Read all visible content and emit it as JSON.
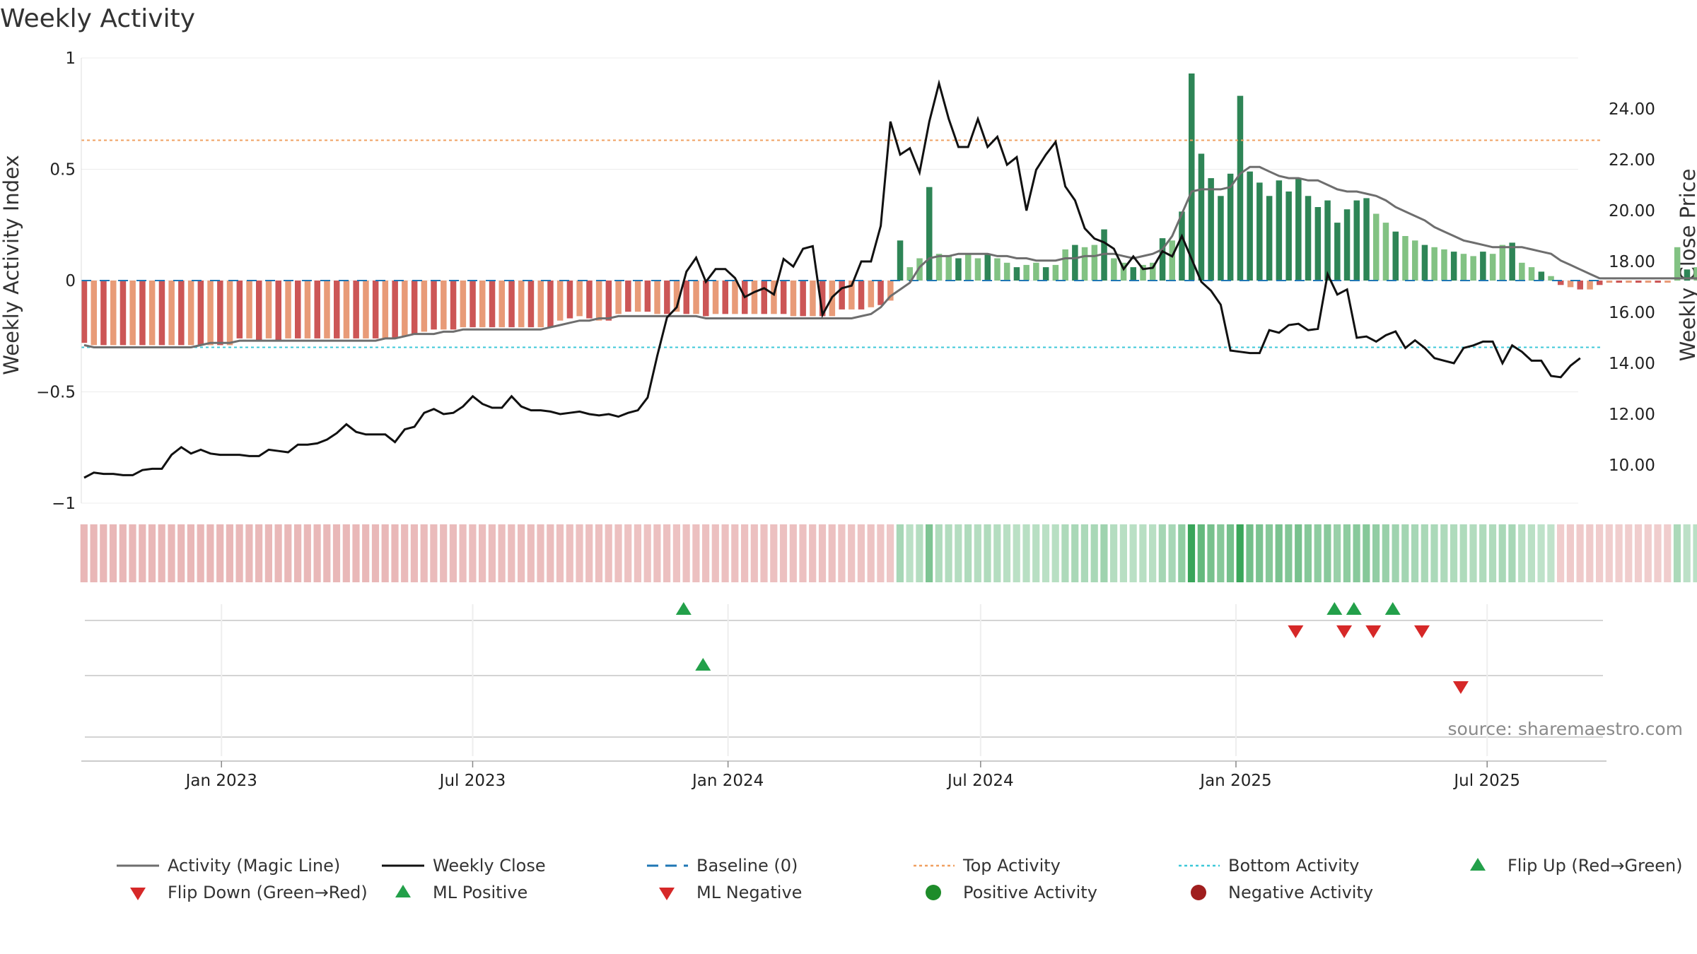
{
  "chart_data": {
    "type": "bar",
    "title": "Weekly Activity",
    "ylabel_left": "Weekly Activity Index",
    "ylabel_right": "Weekly Close Price",
    "ylim_left": [
      -1,
      1
    ],
    "ylim_right": [
      8.5,
      26.0
    ],
    "yticks_left": [
      1,
      0.5,
      0,
      -0.5,
      -1
    ],
    "ytick_labels_left": [
      "1",
      "0.5",
      "0",
      "−0.5",
      "−1"
    ],
    "yticks_right": [
      24,
      22,
      20,
      18,
      16,
      14,
      12,
      10
    ],
    "ytick_labels_right": [
      "24.00",
      "22.00",
      "20.00",
      "18.00",
      "16.00",
      "14.00",
      "12.00",
      "10.00"
    ],
    "x_range": [
      "2022-09-22",
      "2025-09-25"
    ],
    "xticks": [
      "2023-01-01",
      "2023-07-01",
      "2024-01-01",
      "2024-07-01",
      "2025-01-01",
      "2025-07-01"
    ],
    "xtick_labels": [
      "Jan 2023",
      "Jul 2023",
      "Jan 2024",
      "Jul 2024",
      "Jan 2025",
      "Jul 2025"
    ],
    "top_activity": 0.63,
    "bottom_activity": -0.3,
    "baseline": 0,
    "weeks_start": "2022-09-22",
    "week_step_days": 7,
    "activity_values": [
      -0.28,
      -0.29,
      -0.29,
      -0.29,
      -0.29,
      -0.29,
      -0.29,
      -0.29,
      -0.29,
      -0.29,
      -0.29,
      -0.29,
      -0.29,
      -0.29,
      -0.29,
      -0.29,
      -0.26,
      -0.26,
      -0.27,
      -0.26,
      -0.27,
      -0.26,
      -0.26,
      -0.26,
      -0.26,
      -0.26,
      -0.26,
      -0.26,
      -0.26,
      -0.26,
      -0.26,
      -0.26,
      -0.26,
      -0.25,
      -0.24,
      -0.23,
      -0.22,
      -0.22,
      -0.22,
      -0.21,
      -0.21,
      -0.21,
      -0.21,
      -0.21,
      -0.21,
      -0.21,
      -0.21,
      -0.21,
      -0.21,
      -0.18,
      -0.17,
      -0.16,
      -0.17,
      -0.18,
      -0.18,
      -0.15,
      -0.14,
      -0.14,
      -0.14,
      -0.15,
      -0.15,
      -0.14,
      -0.15,
      -0.15,
      -0.16,
      -0.15,
      -0.15,
      -0.15,
      -0.15,
      -0.15,
      -0.15,
      -0.15,
      -0.15,
      -0.16,
      -0.16,
      -0.16,
      -0.16,
      -0.16,
      -0.13,
      -0.13,
      -0.13,
      -0.12,
      -0.11,
      -0.09,
      0.18,
      0.06,
      0.1,
      0.42,
      0.12,
      0.11,
      0.1,
      0.12,
      0.1,
      0.12,
      0.1,
      0.08,
      0.06,
      0.07,
      0.08,
      0.06,
      0.07,
      0.14,
      0.16,
      0.15,
      0.16,
      0.23,
      0.1,
      0.08,
      0.06,
      0.07,
      0.08,
      0.19,
      0.18,
      0.31,
      0.93,
      0.57,
      0.46,
      0.38,
      0.48,
      0.83,
      0.49,
      0.44,
      0.38,
      0.45,
      0.4,
      0.46,
      0.38,
      0.33,
      0.36,
      0.26,
      0.32,
      0.36,
      0.37,
      0.3,
      0.26,
      0.22,
      0.2,
      0.18,
      0.16,
      0.15,
      0.14,
      0.13,
      0.12,
      0.11,
      0.13,
      0.12,
      0.16,
      0.17,
      0.08,
      0.06,
      0.04,
      0.02,
      -0.02,
      -0.03,
      -0.04,
      -0.04,
      -0.02,
      -0.01,
      -0.01,
      -0.01,
      -0.01,
      -0.01,
      -0.01,
      -0.01,
      0.15,
      0.05,
      0.06,
      -0.01,
      -0.02,
      -0.02,
      -0.02,
      -0.02,
      -0.03,
      -0.04,
      -0.05,
      -0.04,
      -0.06,
      -0.06,
      -0.06,
      -0.05,
      -0.05,
      -0.04,
      -0.04,
      -0.04,
      -0.07,
      -0.05,
      -0.05,
      -0.07,
      -0.07,
      -0.08,
      -0.1,
      -0.09,
      -0.07
    ],
    "magic_line": [
      -0.29,
      -0.3,
      -0.3,
      -0.3,
      -0.3,
      -0.3,
      -0.3,
      -0.3,
      -0.3,
      -0.3,
      -0.3,
      -0.3,
      -0.29,
      -0.28,
      -0.28,
      -0.28,
      -0.27,
      -0.27,
      -0.27,
      -0.27,
      -0.27,
      -0.27,
      -0.27,
      -0.27,
      -0.27,
      -0.27,
      -0.27,
      -0.27,
      -0.27,
      -0.27,
      -0.27,
      -0.26,
      -0.26,
      -0.25,
      -0.24,
      -0.24,
      -0.24,
      -0.23,
      -0.23,
      -0.22,
      -0.22,
      -0.22,
      -0.22,
      -0.22,
      -0.22,
      -0.22,
      -0.22,
      -0.22,
      -0.21,
      -0.2,
      -0.19,
      -0.18,
      -0.18,
      -0.17,
      -0.17,
      -0.16,
      -0.16,
      -0.16,
      -0.16,
      -0.16,
      -0.16,
      -0.16,
      -0.16,
      -0.16,
      -0.17,
      -0.17,
      -0.17,
      -0.17,
      -0.17,
      -0.17,
      -0.17,
      -0.17,
      -0.17,
      -0.17,
      -0.17,
      -0.17,
      -0.17,
      -0.17,
      -0.17,
      -0.17,
      -0.16,
      -0.15,
      -0.12,
      -0.07,
      -0.04,
      -0.01,
      0.06,
      0.1,
      0.11,
      0.11,
      0.12,
      0.12,
      0.12,
      0.12,
      0.11,
      0.11,
      0.1,
      0.1,
      0.09,
      0.09,
      0.09,
      0.1,
      0.1,
      0.11,
      0.11,
      0.12,
      0.12,
      0.11,
      0.1,
      0.11,
      0.12,
      0.14,
      0.2,
      0.3,
      0.4,
      0.41,
      0.41,
      0.41,
      0.42,
      0.48,
      0.51,
      0.51,
      0.49,
      0.47,
      0.46,
      0.46,
      0.45,
      0.45,
      0.43,
      0.41,
      0.4,
      0.4,
      0.39,
      0.38,
      0.36,
      0.33,
      0.31,
      0.29,
      0.27,
      0.24,
      0.22,
      0.2,
      0.18,
      0.17,
      0.16,
      0.15,
      0.15,
      0.15,
      0.15,
      0.14,
      0.13,
      0.12,
      0.09,
      0.07,
      0.05,
      0.03,
      0.01,
      0.01,
      0.01,
      0.01,
      0.01,
      0.01,
      0.01,
      0.01,
      0.01,
      0.01,
      0.01,
      0.01,
      0.02,
      0.03,
      0.04,
      0.04,
      0.03,
      0.02,
      0.01,
      0.0,
      0.0,
      -0.01,
      -0.02,
      -0.03,
      -0.04,
      -0.05,
      -0.05,
      -0.05,
      -0.05,
      -0.05,
      -0.05,
      -0.05,
      -0.05,
      -0.05,
      -0.05,
      -0.05,
      -0.06,
      -0.07,
      -0.07,
      -0.08,
      -0.08,
      -0.08,
      -0.08,
      -0.08
    ],
    "weekly_close": [
      9.5,
      9.7,
      9.65,
      9.65,
      9.6,
      9.6,
      9.8,
      9.85,
      9.85,
      10.4,
      10.7,
      10.45,
      10.6,
      10.45,
      10.4,
      10.4,
      10.4,
      10.35,
      10.35,
      10.6,
      10.55,
      10.5,
      10.8,
      10.8,
      10.85,
      11.0,
      11.25,
      11.6,
      11.3,
      11.2,
      11.2,
      11.2,
      10.9,
      11.4,
      11.5,
      12.05,
      12.2,
      12.0,
      12.05,
      12.3,
      12.7,
      12.4,
      12.25,
      12.25,
      12.7,
      12.3,
      12.15,
      12.15,
      12.1,
      12.0,
      12.05,
      12.1,
      12.0,
      11.95,
      12.0,
      11.9,
      12.05,
      12.15,
      12.65,
      14.3,
      15.8,
      16.2,
      17.6,
      18.15,
      17.2,
      17.7,
      17.7,
      17.35,
      16.6,
      16.8,
      16.95,
      16.7,
      18.1,
      17.8,
      18.5,
      18.6,
      15.9,
      16.6,
      16.95,
      17.05,
      18.0,
      18.0,
      19.4,
      23.5,
      22.2,
      22.45,
      21.5,
      23.5,
      25.0,
      23.6,
      22.5,
      22.5,
      23.6,
      22.5,
      22.9,
      21.8,
      22.1,
      20.0,
      21.6,
      22.2,
      22.7,
      20.95,
      20.4,
      19.3,
      18.9,
      18.75,
      18.5,
      17.7,
      18.2,
      17.7,
      17.75,
      18.4,
      18.2,
      19.0,
      18.1,
      17.2,
      16.85,
      16.3,
      14.5,
      14.45,
      14.4,
      14.4,
      15.3,
      15.2,
      15.5,
      15.55,
      15.3,
      15.35,
      17.5,
      16.7,
      16.9,
      15.0,
      15.05,
      14.85,
      15.1,
      15.25,
      14.6,
      14.9,
      14.6,
      14.2,
      14.1,
      14.0,
      14.6,
      14.7,
      14.85,
      14.85,
      14.0,
      14.7,
      14.45,
      14.1,
      14.1,
      13.5,
      13.45,
      13.9,
      14.2
    ],
    "flip_up_dates": [
      "2023-11-30",
      "2025-03-13",
      "2025-03-27",
      "2025-04-24"
    ],
    "flip_down_dates": [
      "2025-02-13",
      "2025-03-20",
      "2025-04-10",
      "2025-05-15"
    ],
    "ml_positive_dates": [
      "2023-12-14"
    ],
    "ml_negative_dates": [
      "2025-06-12"
    ],
    "source_note": "source: sharemaestro.com",
    "legend": [
      {
        "label": "Activity (Magic Line)",
        "symbol": "line",
        "color": "#6e6e6e"
      },
      {
        "label": "Weekly Close",
        "symbol": "line",
        "color": "#111111"
      },
      {
        "label": "Baseline (0)",
        "symbol": "dash",
        "color": "#1f77b4"
      },
      {
        "label": "Top Activity",
        "symbol": "dot",
        "color": "#f0a060"
      },
      {
        "label": "Bottom Activity",
        "symbol": "dot",
        "color": "#3cc8d8"
      },
      {
        "label": "Flip Up (Red→Green)",
        "symbol": "tri-up",
        "color": "#23a04a"
      },
      {
        "label": "Flip Down (Green→Red)",
        "symbol": "tri-down",
        "color": "#d62828"
      },
      {
        "label": "ML Positive",
        "symbol": "tri-up",
        "color": "#23a04a"
      },
      {
        "label": "ML Negative",
        "symbol": "tri-down",
        "color": "#d62828"
      },
      {
        "label": "Positive Activity",
        "symbol": "circle",
        "color": "#1e8c2a"
      },
      {
        "label": "Negative Activity",
        "symbol": "circle",
        "color": "#a01e1e"
      }
    ],
    "colors": {
      "pos_strong": "#2e8556",
      "pos_light": "#82c283",
      "neg_strong": "#cc5656",
      "neg_light": "#e89b78",
      "magic_line": "#6e6e6e",
      "close_line": "#111111",
      "baseline": "#1f77b4",
      "top": "#f0a060",
      "bottom": "#3cc8d8",
      "flip_up": "#23a04a",
      "flip_down": "#d62828"
    }
  }
}
